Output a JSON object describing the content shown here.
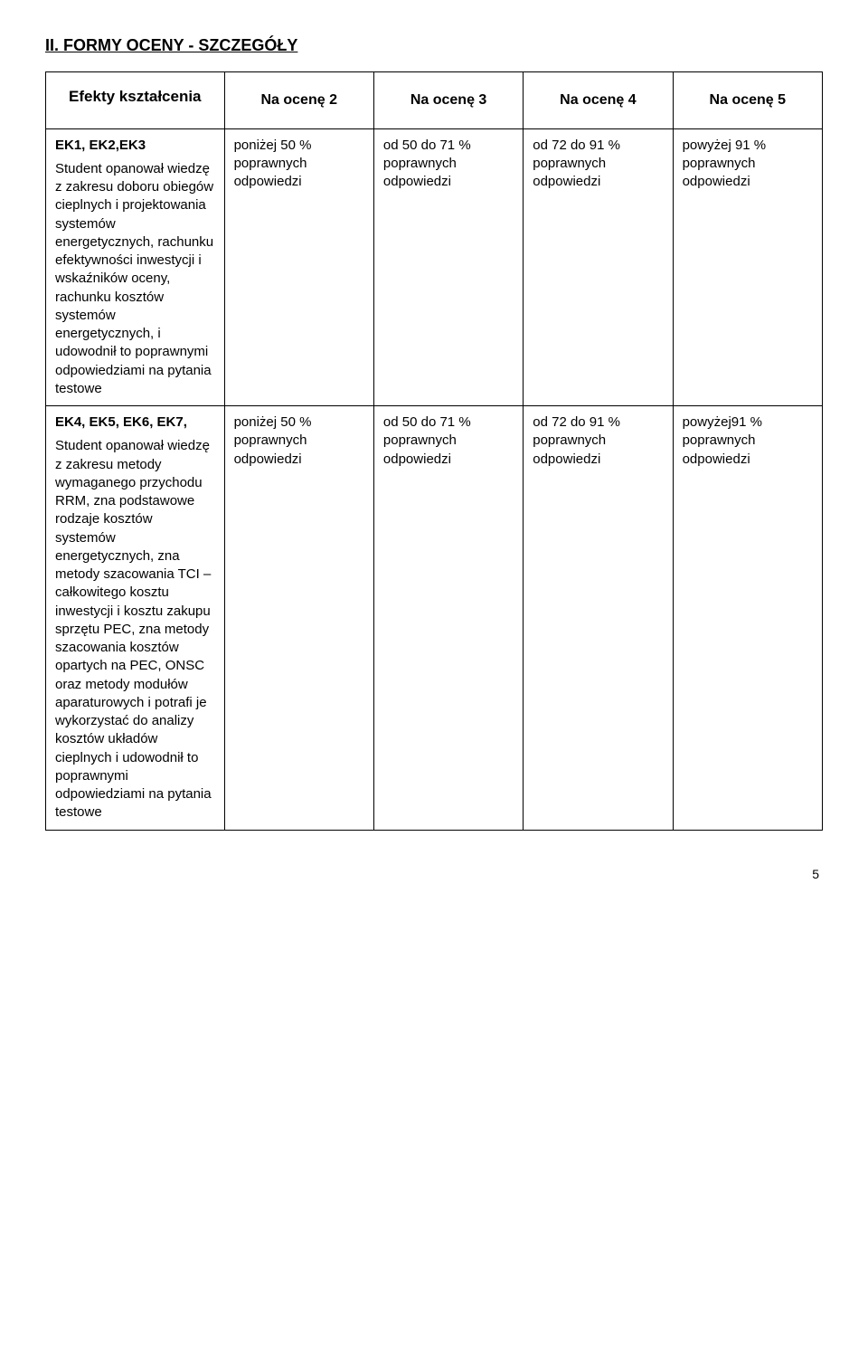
{
  "section_title": "II. FORMY OCENY - SZCZEGÓŁY",
  "headers": {
    "effects": "Efekty kształcenia",
    "grade2": "Na ocenę 2",
    "grade3": "Na ocenę 3",
    "grade4": "Na ocenę 4",
    "grade5": "Na ocenę 5"
  },
  "row1": {
    "ek": "EK1, EK2,EK3",
    "desc": "Student opanował wiedzę z zakresu doboru obiegów cieplnych i projektowania systemów energetycznych, rachunku efektywności inwestycji i wskaźników oceny, rachunku kosztów systemów energetycznych, i udowodnił to poprawnymi odpowiedziami na pytania testowe",
    "g2": "poniżej 50 % poprawnych odpowiedzi",
    "g3": "od 50 do 71 % poprawnych odpowiedzi",
    "g4": "od 72 do 91 % poprawnych odpowiedzi",
    "g5": "powyżej 91 % poprawnych odpowiedzi"
  },
  "row2": {
    "ek": "EK4, EK5, EK6, EK7,",
    "desc": "Student opanował wiedzę z zakresu metody wymaganego przychodu RRM, zna podstawowe rodzaje kosztów systemów energetycznych, zna metody szacowania TCI – całkowitego kosztu inwestycji i kosztu zakupu sprzętu PEC, zna metody szacowania kosztów opartych na PEC, ONSC oraz metody modułów aparaturowych i potrafi je wykorzystać do analizy kosztów układów cieplnych i udowodnił to poprawnymi odpowiedziami na pytania testowe",
    "g2": "poniżej 50 % poprawnych odpowiedzi",
    "g3": "od 50 do 71 % poprawnych odpowiedzi",
    "g4": "od 72 do 91 % poprawnych odpowiedzi",
    "g5": "powyżej91 % poprawnych odpowiedzi"
  },
  "page_number": "5"
}
